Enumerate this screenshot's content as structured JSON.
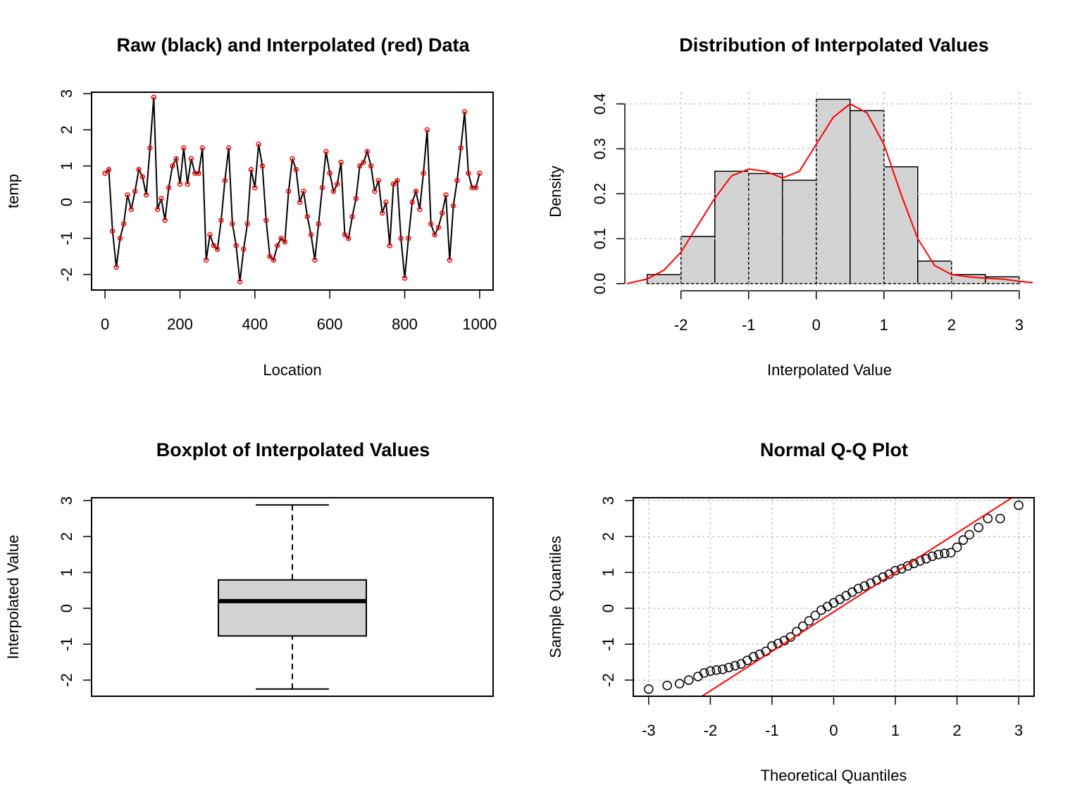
{
  "chart_data": [
    {
      "type": "line",
      "title": "Raw (black) and Interpolated (red) Data",
      "x_label": "Location",
      "y_label": "temp",
      "x": [
        0,
        10,
        20,
        30,
        40,
        50,
        60,
        70,
        80,
        90,
        100,
        110,
        120,
        130,
        140,
        150,
        160,
        170,
        180,
        190,
        200,
        210,
        220,
        230,
        240,
        250,
        260,
        270,
        280,
        290,
        300,
        310,
        320,
        330,
        340,
        350,
        360,
        370,
        380,
        390,
        400,
        410,
        420,
        430,
        440,
        450,
        460,
        470,
        480,
        490,
        500,
        510,
        520,
        530,
        540,
        550,
        560,
        570,
        580,
        590,
        600,
        610,
        620,
        630,
        640,
        650,
        660,
        670,
        680,
        690,
        700,
        710,
        720,
        730,
        740,
        750,
        760,
        770,
        780,
        790,
        800,
        810,
        820,
        830,
        840,
        850,
        860,
        870,
        880,
        890,
        900,
        910,
        920,
        930,
        940,
        950,
        960,
        970,
        980,
        990,
        1000
      ],
      "values": [
        0.8,
        0.9,
        -0.8,
        -1.8,
        -1.0,
        -0.6,
        0.2,
        -0.2,
        0.3,
        0.9,
        0.7,
        0.2,
        1.5,
        2.9,
        -0.2,
        0.1,
        -0.5,
        0.4,
        1.0,
        1.2,
        0.5,
        1.5,
        0.5,
        1.2,
        0.8,
        0.8,
        1.5,
        -1.6,
        -0.9,
        -1.2,
        -1.3,
        -0.5,
        0.6,
        1.5,
        -0.6,
        -1.2,
        -2.2,
        -1.3,
        -0.6,
        0.9,
        0.4,
        1.6,
        1.0,
        -0.5,
        -1.5,
        -1.6,
        -1.2,
        -1.0,
        -1.1,
        0.3,
        1.2,
        0.9,
        0.0,
        0.3,
        -0.4,
        -0.9,
        -1.6,
        -0.6,
        0.4,
        1.4,
        0.8,
        0.3,
        0.5,
        1.1,
        -0.9,
        -1.0,
        -0.4,
        0.1,
        1.0,
        1.1,
        1.4,
        1.0,
        0.3,
        0.6,
        -0.3,
        0.0,
        -1.2,
        0.5,
        0.6,
        -1.0,
        -2.1,
        -1.0,
        0.0,
        0.3,
        -0.2,
        0.8,
        2.0,
        -0.6,
        -0.9,
        -0.7,
        -0.3,
        0.2,
        -1.6,
        -0.1,
        0.6,
        1.5,
        2.5,
        0.8,
        0.4,
        0.4,
        0.8
      ],
      "color": "#000000",
      "marker_color": "#ff0000",
      "xlim": [
        -36,
        1036
      ],
      "xticks": [
        0,
        200,
        400,
        600,
        800,
        1000
      ],
      "ylim": [
        -2.43,
        3.04
      ],
      "yticks": [
        -2,
        -1,
        0,
        1,
        2,
        3
      ],
      "grid": false
    },
    {
      "type": "histogram",
      "title": "Distribution of Interpolated Values",
      "x_label": "Interpolated Value",
      "y_label": "Density",
      "bins": [
        -2.5,
        -2,
        -1.5,
        -1,
        -0.5,
        0,
        0.5,
        1,
        1.5,
        2,
        2.5,
        3
      ],
      "values": [
        0.02,
        0.105,
        0.25,
        0.245,
        0.23,
        0.41,
        0.385,
        0.26,
        0.05,
        0.02,
        0.015
      ],
      "color": "#d3d3d3",
      "density": {
        "color": "#ff0000",
        "x": [
          -2.8,
          -2.5,
          -2.25,
          -2,
          -1.75,
          -1.5,
          -1.25,
          -1,
          -0.75,
          -0.5,
          -0.25,
          0,
          0.25,
          0.5,
          0.75,
          1,
          1.25,
          1.5,
          1.75,
          2,
          2.25,
          2.5,
          2.75,
          3,
          3.2
        ],
        "values": [
          0.0,
          0.01,
          0.03,
          0.07,
          0.13,
          0.19,
          0.24,
          0.255,
          0.25,
          0.235,
          0.25,
          0.31,
          0.37,
          0.4,
          0.38,
          0.31,
          0.2,
          0.1,
          0.04,
          0.02,
          0.015,
          0.012,
          0.01,
          0.005,
          0.002
        ]
      },
      "xlim": [
        -2.83,
        3.22
      ],
      "xticks": [
        -2,
        -1,
        0,
        1,
        2,
        3
      ],
      "ylim": [
        -0.016,
        0.426
      ],
      "yticks": [
        {
          "value": 0,
          "label": "0.0"
        },
        0.1,
        0.2,
        0.3,
        0.4
      ],
      "grid": true
    },
    {
      "type": "box",
      "title": "Boxplot of Interpolated Values",
      "y_label": "Interpolated Value",
      "whisker_low": -2.25,
      "q1": -0.77,
      "median": 0.2,
      "q3": 0.79,
      "whisker_high": 2.88,
      "color": "#d3d3d3",
      "ylim": [
        -2.45,
        3.08
      ],
      "yticks": [
        -2,
        -1,
        0,
        1,
        2,
        3
      ],
      "grid": false
    },
    {
      "type": "scatter",
      "title": "Normal Q-Q Plot",
      "x_label": "Theoretical Quantiles",
      "y_label": "Sample Quantiles",
      "x": [
        -3,
        -2.7,
        -2.5,
        -2.35,
        -2.2,
        -2.1,
        -2.0,
        -1.9,
        -1.8,
        -1.7,
        -1.6,
        -1.5,
        -1.4,
        -1.3,
        -1.2,
        -1.1,
        -1.0,
        -0.9,
        -0.8,
        -0.7,
        -0.6,
        -0.5,
        -0.4,
        -0.3,
        -0.2,
        -0.1,
        0,
        0.1,
        0.2,
        0.3,
        0.4,
        0.5,
        0.6,
        0.7,
        0.8,
        0.9,
        1.0,
        1.1,
        1.2,
        1.3,
        1.4,
        1.5,
        1.6,
        1.7,
        1.8,
        1.9,
        2.0,
        2.1,
        2.2,
        2.35,
        2.5,
        2.7,
        3.0
      ],
      "values": [
        -2.25,
        -2.15,
        -2.1,
        -2.0,
        -1.9,
        -1.8,
        -1.75,
        -1.72,
        -1.7,
        -1.65,
        -1.6,
        -1.55,
        -1.45,
        -1.35,
        -1.28,
        -1.2,
        -1.05,
        -0.98,
        -0.9,
        -0.8,
        -0.65,
        -0.5,
        -0.35,
        -0.2,
        -0.05,
        0.05,
        0.15,
        0.25,
        0.35,
        0.45,
        0.55,
        0.62,
        0.7,
        0.78,
        0.87,
        0.95,
        1.05,
        1.1,
        1.18,
        1.25,
        1.32,
        1.38,
        1.45,
        1.5,
        1.53,
        1.55,
        1.7,
        1.9,
        2.05,
        2.25,
        2.5,
        2.5,
        2.87
      ],
      "color": "#000000",
      "line": {
        "color": "#ff0000",
        "intercept": -0.1,
        "slope": 1.1
      },
      "xlim": [
        -3.25,
        3.25
      ],
      "xticks": [
        -3,
        -2,
        -1,
        0,
        1,
        2,
        3
      ],
      "ylim": [
        -2.45,
        3.08
      ],
      "yticks": [
        -2,
        -1,
        0,
        1,
        2,
        3
      ],
      "grid": true
    }
  ]
}
